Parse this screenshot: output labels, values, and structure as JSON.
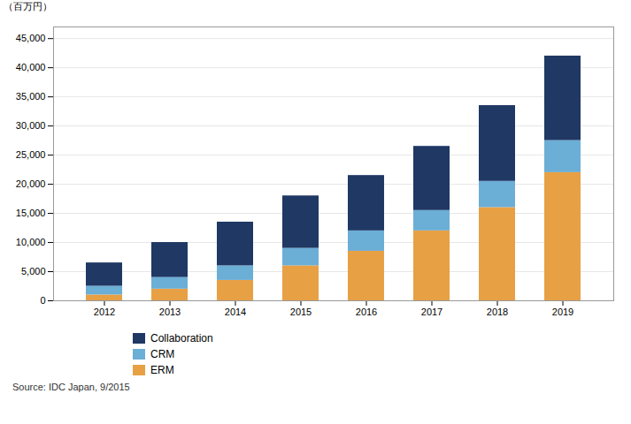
{
  "chart_data": {
    "type": "bar",
    "stacked": true,
    "categories": [
      "2012",
      "2013",
      "2014",
      "2015",
      "2016",
      "2017",
      "2018",
      "2019"
    ],
    "series": [
      {
        "name": "ERM",
        "color": "#E8A045",
        "values": [
          1000,
          2000,
          3500,
          6000,
          8500,
          12000,
          16000,
          22000
        ]
      },
      {
        "name": "CRM",
        "color": "#6BAED6",
        "values": [
          1500,
          2000,
          2500,
          3000,
          3500,
          3500,
          4500,
          5500
        ]
      },
      {
        "name": "Collaboration",
        "color": "#1F3864",
        "values": [
          4000,
          6000,
          7500,
          9000,
          9500,
          11000,
          13000,
          14500
        ]
      }
    ],
    "ylabel": "（百万円）",
    "ylim": [
      0,
      47000
    ],
    "yticks": [
      0,
      {
        "value": 5000,
        "label": "5,000"
      },
      {
        "value": 10000,
        "label": "10,000"
      },
      {
        "value": 15000,
        "label": "15,000"
      },
      {
        "value": 20000,
        "label": "20,000"
      },
      {
        "value": 25000,
        "label": "25,000"
      },
      {
        "value": 30000,
        "label": "30,000"
      },
      {
        "value": 35000,
        "label": "35,000"
      },
      {
        "value": 40000,
        "label": "40,000"
      },
      {
        "value": 45000,
        "label": "45,000"
      }
    ],
    "grid": true,
    "legend": "bottom",
    "annotations": [
      "Source: IDC Japan, 9/2015"
    ]
  }
}
